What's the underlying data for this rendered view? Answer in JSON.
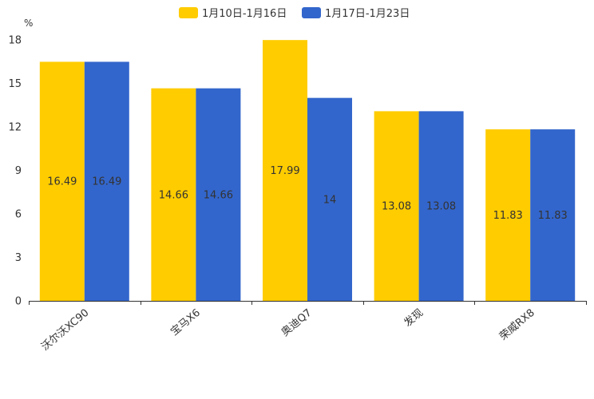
{
  "chart_data": {
    "type": "bar",
    "unit_label": "%",
    "categories": [
      "沃尔沃XC90",
      "宝马X6",
      "奥迪Q7",
      "发现",
      "荣威RX8"
    ],
    "series": [
      {
        "name": "1月10日-1月16日",
        "color": "#ffcc00",
        "values": [
          16.49,
          14.66,
          17.99,
          13.08,
          11.83
        ]
      },
      {
        "name": "1月17日-1月23日",
        "color": "#3366cc",
        "values": [
          16.49,
          14.66,
          14,
          13.08,
          11.83
        ]
      }
    ],
    "y_ticks": [
      0,
      3,
      6,
      9,
      12,
      15,
      18
    ],
    "ylim": [
      0,
      18
    ],
    "legend_position": "top-center",
    "grid": false
  }
}
